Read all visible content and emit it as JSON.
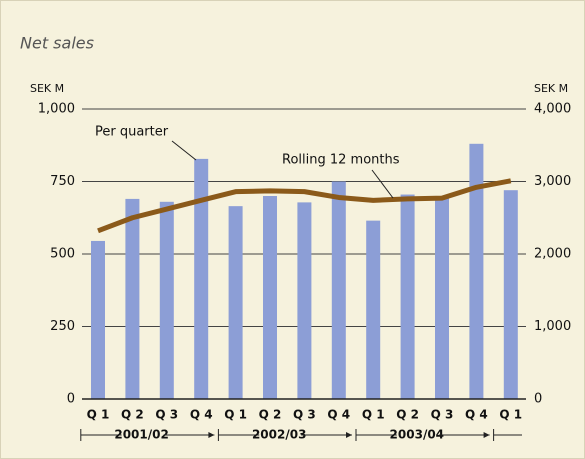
{
  "chart_data": {
    "type": "bar",
    "title": "Net sales",
    "y_unit": "SEK M",
    "y2_unit": "SEK M",
    "categories": [
      "Q 1",
      "Q 2",
      "Q 3",
      "Q 4",
      "Q 1",
      "Q 2",
      "Q 3",
      "Q 4",
      "Q 1",
      "Q 2",
      "Q 3",
      "Q 4",
      "Q 1"
    ],
    "periods": [
      "2001/02",
      "2002/03",
      "2003/04"
    ],
    "series": [
      {
        "name": "Per quarter",
        "color": "#8c9ed6",
        "values": [
          545,
          690,
          680,
          828,
          665,
          700,
          678,
          750,
          615,
          705,
          700,
          880,
          720
        ]
      },
      {
        "name": "Rolling 12 months",
        "color": "#8b5a1a",
        "axis": "y2",
        "values": [
          2320,
          2500,
          2620,
          2740,
          2860,
          2870,
          2860,
          2780,
          2740,
          2760,
          2770,
          2920,
          3010
        ]
      }
    ],
    "ylim": [
      0,
      1000
    ],
    "yticks": [
      0,
      250,
      500,
      750,
      {
        "value": 1000,
        "label": "1,000"
      }
    ],
    "y2lim": [
      0,
      4000
    ],
    "y2ticks": [
      0,
      {
        "value": 1000,
        "label": "1,000"
      },
      {
        "value": 2000,
        "label": "2,000"
      },
      {
        "value": 3000,
        "label": "3,000"
      },
      {
        "value": 4000,
        "label": "4,000"
      }
    ],
    "grid": true
  }
}
